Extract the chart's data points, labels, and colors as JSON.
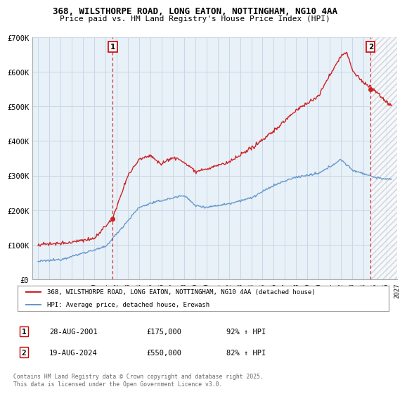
{
  "title_line1": "368, WILSTHORPE ROAD, LONG EATON, NOTTINGHAM, NG10 4AA",
  "title_line2": "Price paid vs. HM Land Registry's House Price Index (HPI)",
  "ylim": [
    0,
    700000
  ],
  "xlim_start": 1994.5,
  "xlim_end": 2027.0,
  "yticks": [
    0,
    100000,
    200000,
    300000,
    400000,
    500000,
    600000,
    700000
  ],
  "ytick_labels": [
    "£0",
    "£100K",
    "£200K",
    "£300K",
    "£400K",
    "£500K",
    "£600K",
    "£700K"
  ],
  "xticks": [
    1995,
    1996,
    1997,
    1998,
    1999,
    2000,
    2001,
    2002,
    2003,
    2004,
    2005,
    2006,
    2007,
    2008,
    2009,
    2010,
    2011,
    2012,
    2013,
    2014,
    2015,
    2016,
    2017,
    2018,
    2019,
    2020,
    2021,
    2022,
    2023,
    2024,
    2025,
    2026,
    2027
  ],
  "hpi_color": "#6699cc",
  "price_color": "#cc2222",
  "chart_bg": "#e8f0f8",
  "vline1_x": 2001.65,
  "vline2_x": 2024.63,
  "marker1_y": 175000,
  "marker2_y": 550000,
  "hatch_start": 2024.63,
  "legend_label1": "368, WILSTHORPE ROAD, LONG EATON, NOTTINGHAM, NG10 4AA (detached house)",
  "legend_label2": "HPI: Average price, detached house, Erewash",
  "footer_line1": "Contains HM Land Registry data © Crown copyright and database right 2025.",
  "footer_line2": "This data is licensed under the Open Government Licence v3.0.",
  "table_row1": [
    "1",
    "28-AUG-2001",
    "£175,000",
    "92% ↑ HPI"
  ],
  "table_row2": [
    "2",
    "19-AUG-2024",
    "£550,000",
    "82% ↑ HPI"
  ],
  "background_color": "#ffffff",
  "grid_color": "#c8d8e8"
}
